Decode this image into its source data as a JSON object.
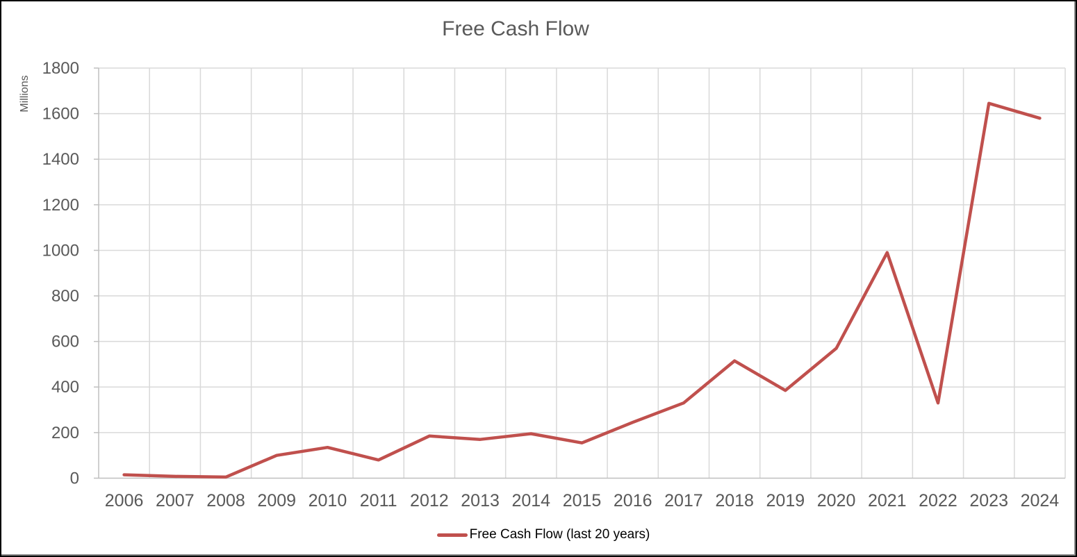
{
  "chart_data": {
    "type": "line",
    "title": "Free Cash Flow",
    "y_axis_label": "Millions",
    "categories": [
      "2006",
      "2007",
      "2008",
      "2009",
      "2010",
      "2011",
      "2012",
      "2013",
      "2014",
      "2015",
      "2016",
      "2017",
      "2018",
      "2019",
      "2020",
      "2021",
      "2022",
      "2023",
      "2024"
    ],
    "series": [
      {
        "name": "Free Cash Flow (last 20 years)",
        "color": "#C0504D",
        "values": [
          15,
          8,
          5,
          100,
          135,
          80,
          185,
          170,
          195,
          155,
          245,
          330,
          515,
          385,
          570,
          990,
          330,
          1645,
          1580
        ]
      }
    ],
    "ylim": [
      0,
      1800
    ],
    "y_tick_interval": 200,
    "y_tick_labels": [
      "0",
      "200",
      "400",
      "600",
      "800",
      "1000",
      "1200",
      "1400",
      "1600",
      "1800"
    ],
    "grid": true,
    "legend_position": "bottom"
  },
  "colors": {
    "line": "#C0504D",
    "gridline": "#D9D9D9",
    "axis_line": "#BFBFBF",
    "axis_text": "#595959",
    "title_text": "#595959",
    "legend_text": "#000000"
  }
}
